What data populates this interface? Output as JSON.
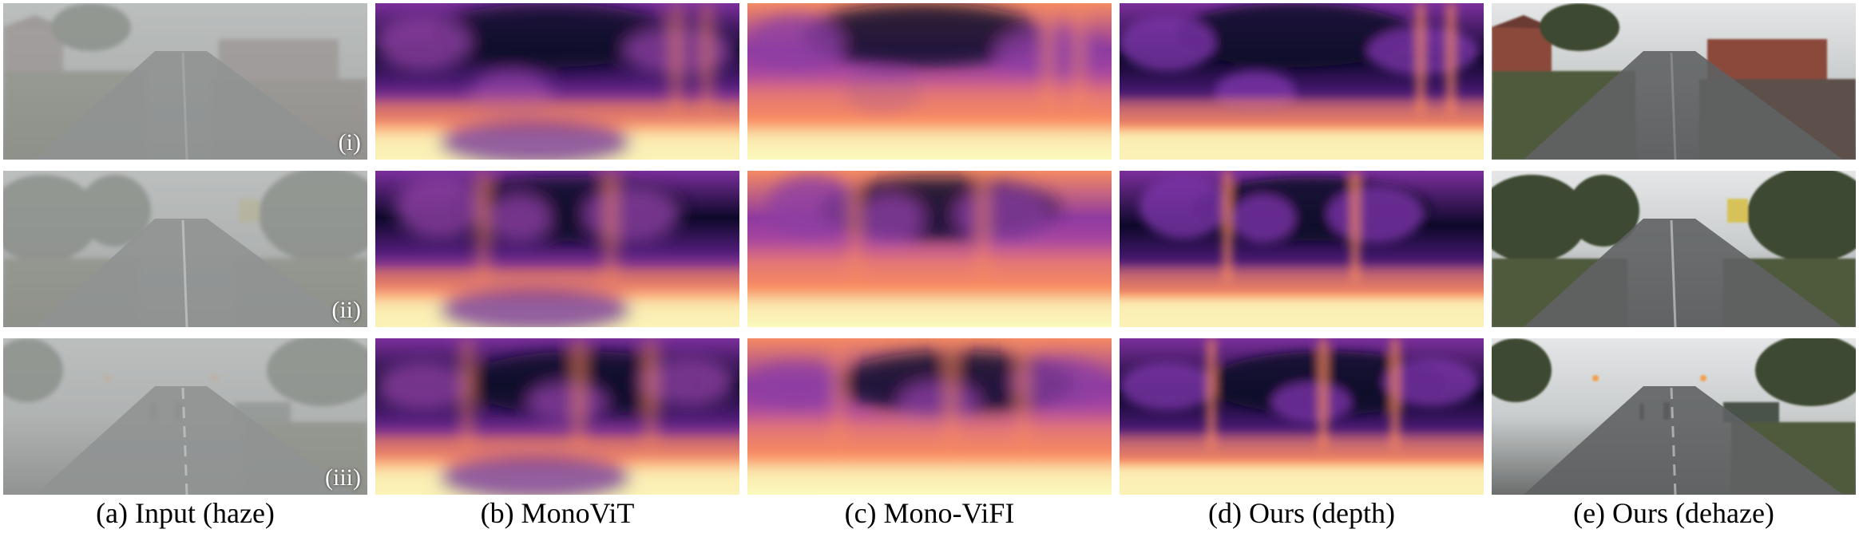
{
  "figure": {
    "columns": [
      {
        "caption": "(a) Input (haze)",
        "kind": "photo-haze"
      },
      {
        "caption": "(b) MonoViT",
        "kind": "depth-monovit"
      },
      {
        "caption": "(c) Mono-ViFI",
        "kind": "depth-monovifi"
      },
      {
        "caption": "(d) Ours (depth)",
        "kind": "depth-ours"
      },
      {
        "caption": "(e) Ours (dehaze)",
        "kind": "photo-dehaze"
      }
    ],
    "rows": [
      {
        "label": "(i)",
        "scene": "rural road with houses"
      },
      {
        "label": "(ii)",
        "scene": "road with trees and sign"
      },
      {
        "label": "(iii)",
        "scene": "street with pedestrians and tram line"
      }
    ],
    "colors": {
      "haze_sky": "#b9bcbb",
      "haze_ground": "#7d807e",
      "depth_far": "#0d0829",
      "depth_mid": "#7b2f9c",
      "depth_near": "#fcfdbf",
      "depth_orange": "#f98b5f",
      "clear_sky": "#e4e6e7",
      "clear_ground": "#6b6e6d"
    }
  }
}
